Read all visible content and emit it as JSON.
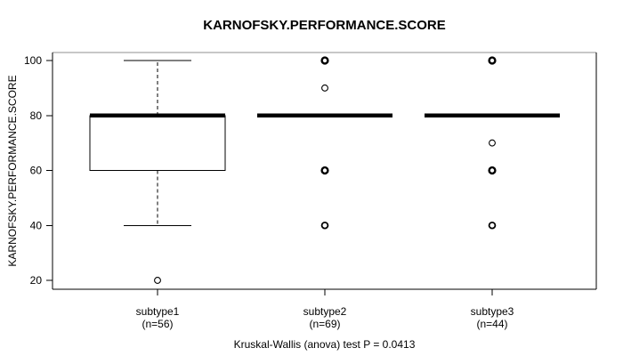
{
  "chart_data": {
    "type": "boxplot",
    "title": "KARNOFSKY.PERFORMANCE.SCORE",
    "ylabel": "KARNOFSKY.PERFORMANCE.SCORE",
    "caption": "Kruskal-Wallis (anova) test P = 0.0413",
    "yticks": [
      20,
      40,
      60,
      80,
      100
    ],
    "ylim": [
      17,
      103
    ],
    "grid": false,
    "legend": "none",
    "groups": [
      {
        "label": "subtype1",
        "n": 56,
        "n_label": "(n=56)",
        "stats": {
          "whisker_low": 40,
          "q1": 60,
          "median": 80,
          "q3": 80,
          "whisker_high": 100
        },
        "outliers": [
          {
            "value": 20,
            "weight": "light"
          }
        ]
      },
      {
        "label": "subtype2",
        "n": 69,
        "n_label": "(n=69)",
        "stats": {
          "whisker_low": 80,
          "q1": 80,
          "median": 80,
          "q3": 80,
          "whisker_high": 80
        },
        "outliers": [
          {
            "value": 100,
            "weight": "bold"
          },
          {
            "value": 90,
            "weight": "light"
          },
          {
            "value": 60,
            "weight": "bold"
          },
          {
            "value": 40,
            "weight": "medium"
          }
        ]
      },
      {
        "label": "subtype3",
        "n": 44,
        "n_label": "(n=44)",
        "stats": {
          "whisker_low": 80,
          "q1": 80,
          "median": 80,
          "q3": 80,
          "whisker_high": 80
        },
        "outliers": [
          {
            "value": 100,
            "weight": "bold"
          },
          {
            "value": 70,
            "weight": "light"
          },
          {
            "value": 60,
            "weight": "bold"
          },
          {
            "value": 40,
            "weight": "medium"
          }
        ]
      }
    ],
    "colors": {
      "foreground": "#000000",
      "background": "#ffffff"
    }
  }
}
